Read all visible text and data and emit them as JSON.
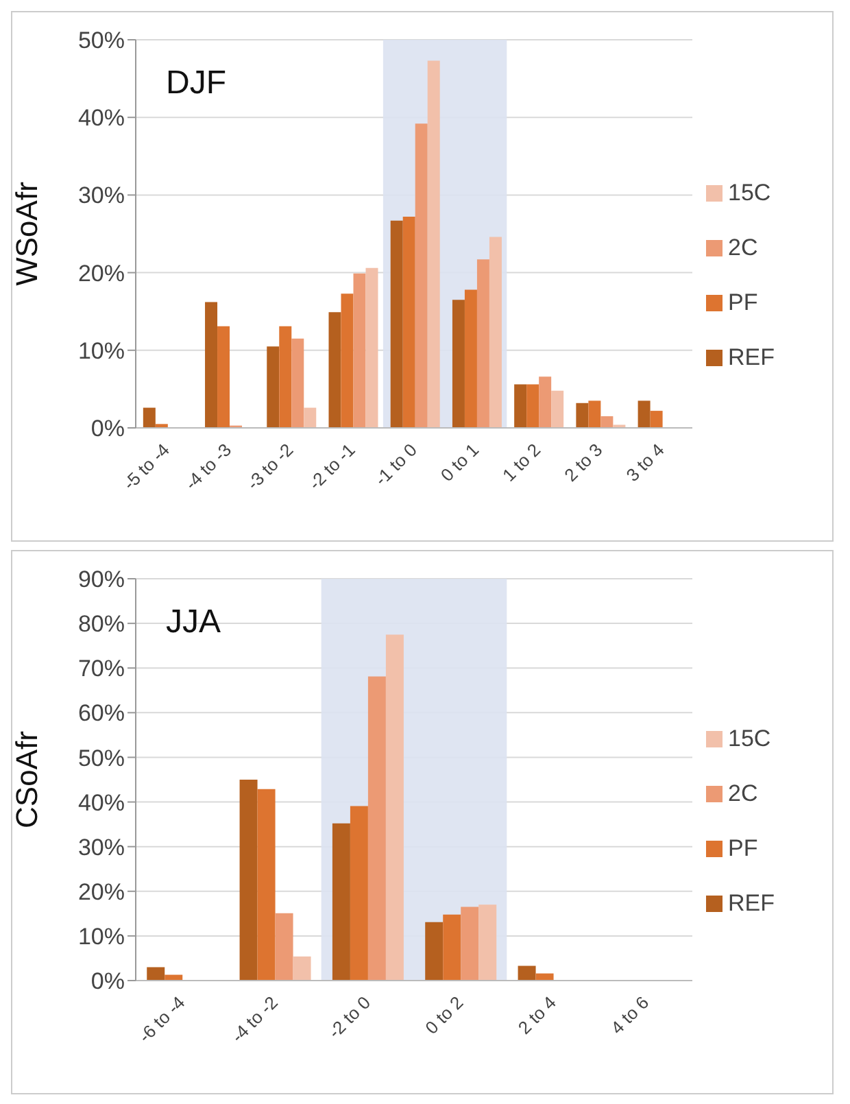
{
  "chart_data": [
    {
      "type": "bar",
      "ylabel": "WSoAfr",
      "annotations": [
        "DJF"
      ],
      "categories": [
        "-5 to -4",
        "-4 to -3",
        "-3 to -2",
        "-2 to -1",
        "-1 to 0",
        "0 to 1",
        "1 to 2",
        "2 to 3",
        "3 to 4"
      ],
      "series": [
        {
          "name": "REF",
          "color": "#b5601f",
          "values": [
            2.6,
            16.2,
            10.5,
            14.9,
            26.7,
            16.5,
            5.6,
            3.2,
            3.5
          ]
        },
        {
          "name": "PF",
          "color": "#dd7430",
          "values": [
            0.5,
            13.1,
            13.1,
            17.3,
            27.2,
            17.8,
            5.6,
            3.5,
            2.2
          ]
        },
        {
          "name": "2C",
          "color": "#ec9a74",
          "values": [
            0,
            0.3,
            11.5,
            19.9,
            39.2,
            21.7,
            6.6,
            1.5,
            0
          ]
        },
        {
          "name": "15C",
          "color": "#f2c0aa",
          "values": [
            0,
            0,
            2.6,
            20.6,
            47.3,
            24.6,
            4.8,
            0.4,
            0
          ]
        }
      ],
      "ylim": [
        0,
        50
      ],
      "yticks": [
        {
          "value": 0,
          "label": "0%"
        },
        {
          "value": 10,
          "label": "10%"
        },
        {
          "value": 20,
          "label": "20%"
        },
        {
          "value": 30,
          "label": "30%"
        },
        {
          "value": 40,
          "label": "40%"
        },
        {
          "value": 50,
          "label": "50%"
        }
      ],
      "bands": [
        {
          "axis": "x",
          "from": "-1 to 0",
          "to": "0 to 1",
          "color": "#dbe2f1"
        }
      ],
      "grid": "y",
      "legend": "right"
    },
    {
      "type": "bar",
      "ylabel": "CSoAfr",
      "annotations": [
        "JJA"
      ],
      "categories": [
        "-6 to -4",
        "-4 to -2",
        "-2 to 0",
        "0 to 2",
        "2 to 4",
        "4 to 6"
      ],
      "series": [
        {
          "name": "REF",
          "color": "#b5601f",
          "values": [
            3.0,
            45.0,
            35.2,
            13.1,
            3.3,
            0
          ]
        },
        {
          "name": "PF",
          "color": "#dd7430",
          "values": [
            1.3,
            42.9,
            39.1,
            14.8,
            1.6,
            0
          ]
        },
        {
          "name": "2C",
          "color": "#ec9a74",
          "values": [
            0,
            15.1,
            68.1,
            16.5,
            0,
            0
          ]
        },
        {
          "name": "15C",
          "color": "#f2c0aa",
          "values": [
            0,
            5.4,
            77.5,
            17.0,
            0,
            0
          ]
        }
      ],
      "ylim": [
        0,
        90
      ],
      "yticks": [
        {
          "value": 0,
          "label": "0%"
        },
        {
          "value": 10,
          "label": "10%"
        },
        {
          "value": 20,
          "label": "20%"
        },
        {
          "value": 30,
          "label": "30%"
        },
        {
          "value": 40,
          "label": "40%"
        },
        {
          "value": 50,
          "label": "50%"
        },
        {
          "value": 60,
          "label": "60%"
        },
        {
          "value": 70,
          "label": "70%"
        },
        {
          "value": 80,
          "label": "80%"
        },
        {
          "value": 90,
          "label": "90%"
        }
      ],
      "bands": [
        {
          "axis": "x",
          "from": "-2 to 0",
          "to": "0 to 2",
          "color": "#dbe2f1"
        }
      ],
      "grid": "y",
      "legend": "right"
    }
  ]
}
